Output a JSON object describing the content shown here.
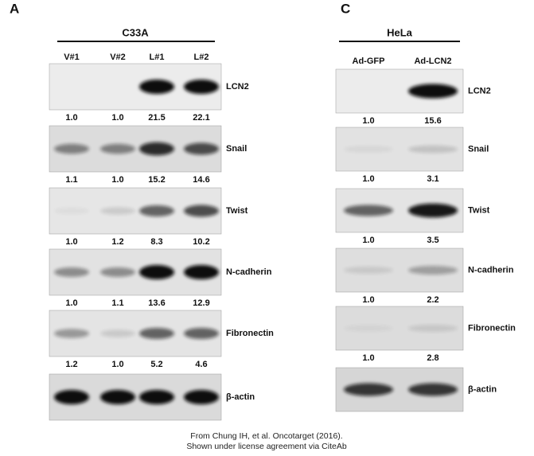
{
  "panels": [
    {
      "letter": "A",
      "cell_line": "C33A",
      "lanes": [
        "V#1",
        "V#2",
        "L#1",
        "L#2"
      ],
      "blots": [
        {
          "label": "LCN2",
          "quant": [
            "1.0",
            "1.0",
            "21.5",
            "22.1"
          ]
        },
        {
          "label": "Snail",
          "quant": [
            "1.1",
            "1.0",
            "15.2",
            "14.6"
          ]
        },
        {
          "label": "Twist",
          "quant": [
            "1.0",
            "1.2",
            "8.3",
            "10.2"
          ]
        },
        {
          "label": "N-cadherin",
          "quant": [
            "1.0",
            "1.1",
            "13.6",
            "12.9"
          ]
        },
        {
          "label": "Fibronectin",
          "quant": [
            "1.2",
            "1.0",
            "5.2",
            "4.6"
          ]
        },
        {
          "label": "β-actin"
        }
      ]
    },
    {
      "letter": "C",
      "cell_line": "HeLa",
      "lanes": [
        "Ad-GFP",
        "Ad-LCN2"
      ],
      "blots": [
        {
          "label": "LCN2",
          "quant": [
            "1.0",
            "15.6"
          ]
        },
        {
          "label": "Snail",
          "quant": [
            "1.0",
            "3.1"
          ]
        },
        {
          "label": "Twist",
          "quant": [
            "1.0",
            "3.5"
          ]
        },
        {
          "label": "N-cadherin",
          "quant": [
            "1.0",
            "2.2"
          ]
        },
        {
          "label": "Fibronectin",
          "quant": [
            "1.0",
            "2.8"
          ]
        },
        {
          "label": "β-actin"
        }
      ]
    }
  ],
  "footer": [
    "From Chung IH, et al. Oncotarget (2016).",
    "Shown under license agreement via CiteAb"
  ]
}
